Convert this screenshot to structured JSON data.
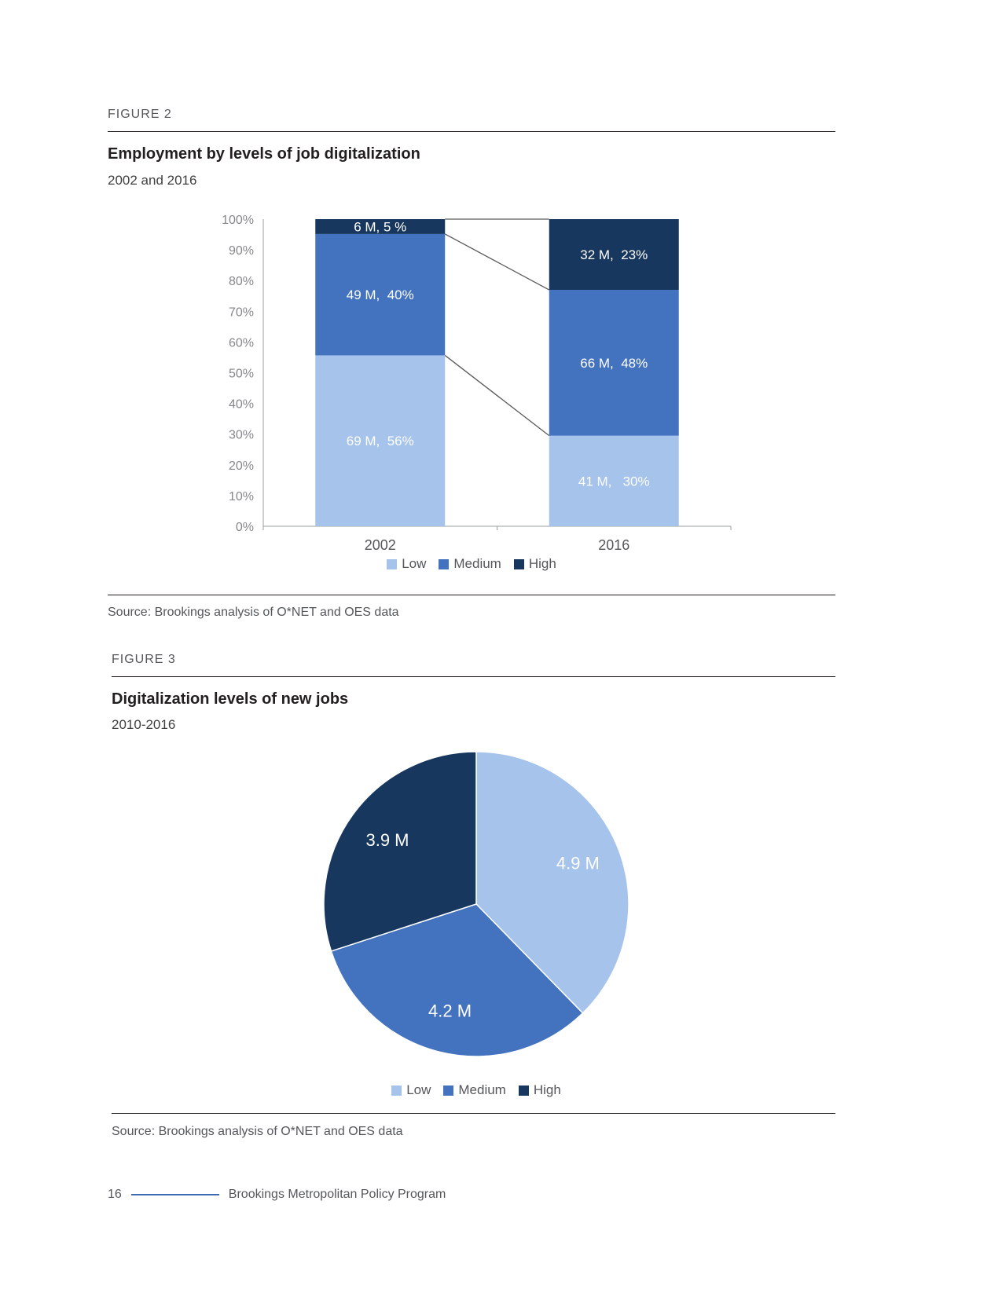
{
  "figures": [
    {
      "label": "FIGURE 2",
      "source": "Source: Brookings analysis of O*NET and OES data"
    },
    {
      "label": "FIGURE 3",
      "source": "Source: Brookings analysis of O*NET and OES data"
    }
  ],
  "footer": {
    "page_number": "16",
    "program": "Brookings Metropolitan Policy Program"
  },
  "colors": {
    "low": "#A5C3EB",
    "medium": "#4372BF",
    "high": "#17375E",
    "axis_text": "#85878A",
    "category_text": "#54565A",
    "legend_text": "#54565A",
    "axis_line": "#9B9DA0",
    "connector": "#595959",
    "label_text": "#FFFFFF",
    "footer_rule": "#3C6AB0"
  },
  "chart_data": [
    {
      "type": "bar",
      "variant": "100-percent-stacked-column",
      "title": "Employment by levels of job digitalization",
      "subtitle": "2002 and 2016",
      "categories": [
        "2002",
        "2016"
      ],
      "series": [
        {
          "name": "Low",
          "color_key": "low",
          "values_millions": [
            69,
            41
          ],
          "percents": [
            56,
            30
          ],
          "labels": [
            "69 M,  56%",
            "41 M,   30%"
          ]
        },
        {
          "name": "Medium",
          "color_key": "medium",
          "values_millions": [
            49,
            66
          ],
          "percents": [
            40,
            48
          ],
          "labels": [
            "49 M,  40%",
            "66 M,  48%"
          ]
        },
        {
          "name": "High",
          "color_key": "high",
          "values_millions": [
            6,
            32
          ],
          "percents": [
            5,
            23
          ],
          "labels": [
            "6 M, 5 %",
            "32 M,  23%"
          ]
        }
      ],
      "y_ticks": [
        "0%",
        "10%",
        "20%",
        "30%",
        "40%",
        "50%",
        "60%",
        "70%",
        "80%",
        "90%",
        "100%"
      ],
      "ylim": [
        0,
        100
      ],
      "grid": false,
      "legend": [
        "Low",
        "Medium",
        "High"
      ],
      "legend_position": "bottom"
    },
    {
      "type": "pie",
      "title": "Digitalization levels of new jobs",
      "subtitle": "2010-2016",
      "labels": [
        "Low",
        "Medium",
        "High"
      ],
      "color_keys": [
        "low",
        "medium",
        "high"
      ],
      "values_millions": [
        4.9,
        4.2,
        3.9
      ],
      "slice_labels": [
        "4.9 M",
        "4.2 M",
        "3.9 M"
      ],
      "start_angle_deg": 0,
      "direction": "clockwise",
      "legend": [
        "Low",
        "Medium",
        "High"
      ],
      "legend_position": "bottom"
    }
  ]
}
